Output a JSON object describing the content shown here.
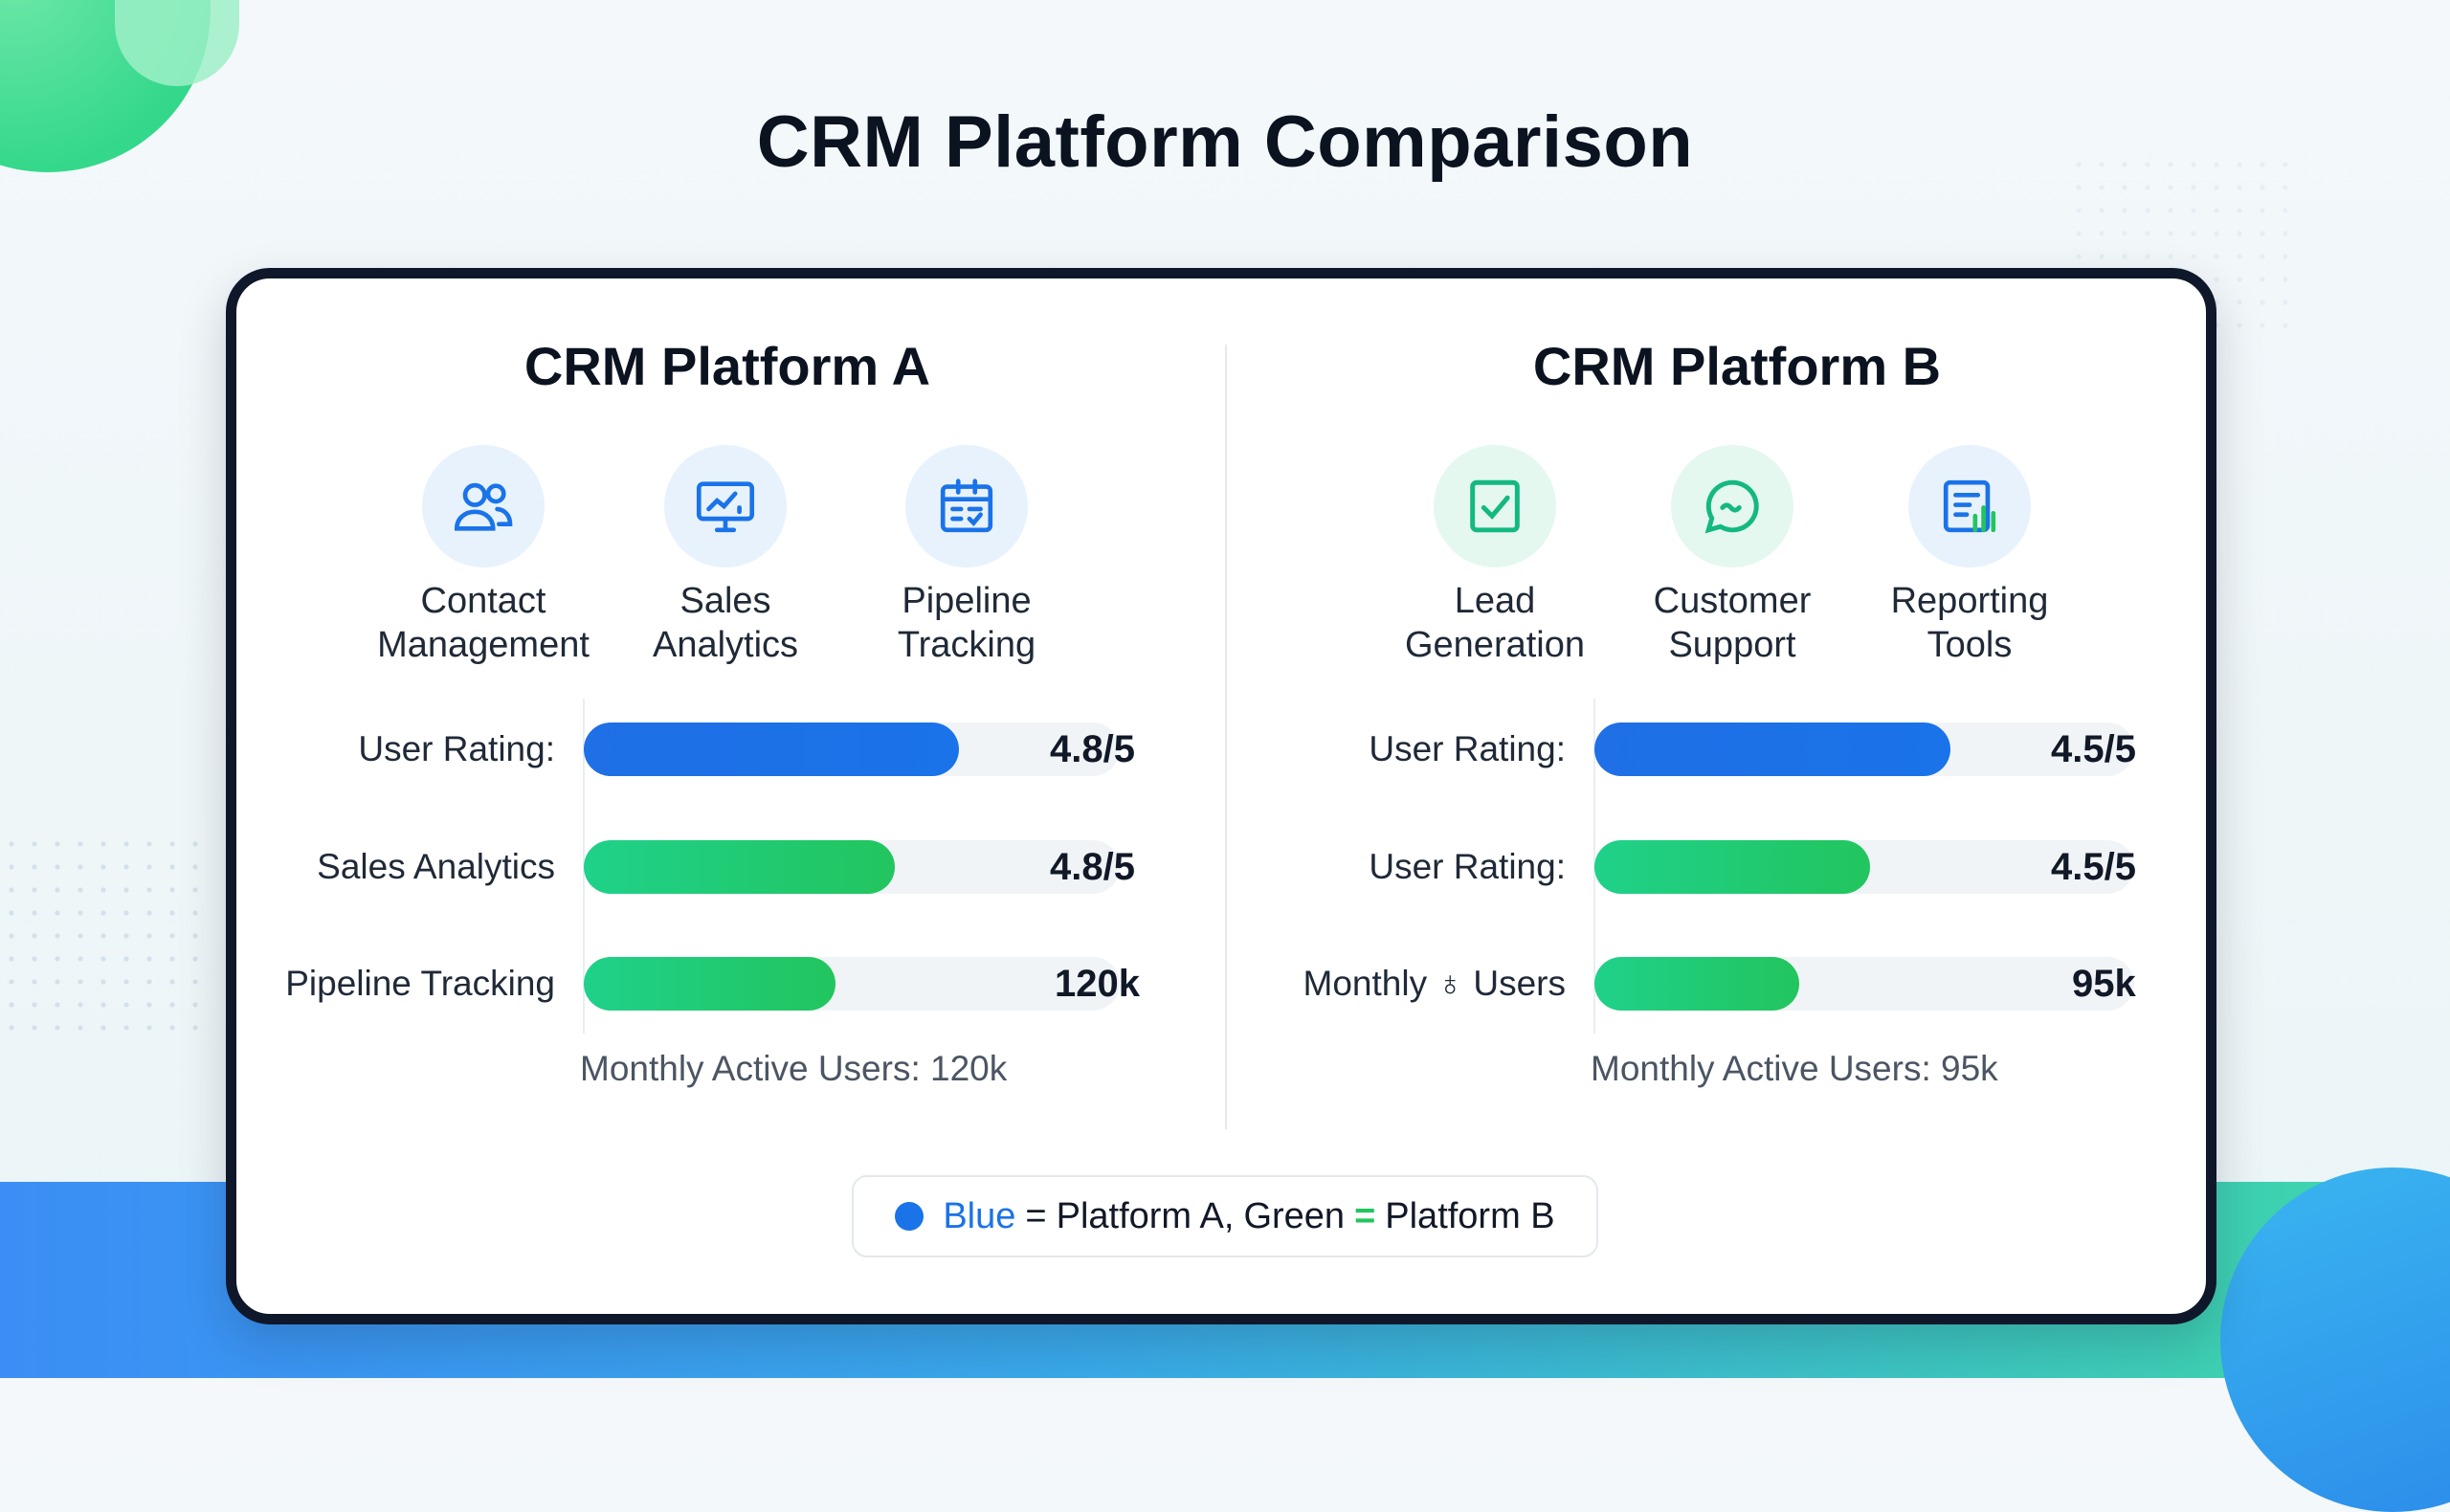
{
  "page_title": "CRM Platform Comparison",
  "colors": {
    "blue": "#1a73e8",
    "green": "#22c55e",
    "text": "#111827"
  },
  "legend": {
    "blue_word": "Blue",
    "eq1": "=",
    "platform_a": "Platform A,",
    "green_word": "Green",
    "eq2": "=",
    "platform_b": "Platform B"
  },
  "chart_data": [
    {
      "type": "bar",
      "title": "CRM Platform A",
      "features": [
        {
          "label": "Contact Management",
          "icon": "users-icon"
        },
        {
          "label": "Sales Analytics",
          "icon": "monitor-chart-icon"
        },
        {
          "label": "Pipeline Tracking",
          "icon": "clipboard-calendar-icon"
        }
      ],
      "categories": [
        "User Rating:",
        "Sales Analytics",
        "Pipeline Tracking"
      ],
      "values": [
        "4.8/5",
        "4.8/5",
        "120k"
      ],
      "fill_fraction": [
        0.7,
        0.58,
        0.47
      ],
      "bar_colors": [
        "#1a73e8",
        "#22c55e",
        "#22c55e"
      ],
      "footnote": "Monthly Active Users: 120k"
    },
    {
      "type": "bar",
      "title": "CRM Platform B",
      "features": [
        {
          "label": "Lead Generation",
          "icon": "checkbox-icon"
        },
        {
          "label": "Customer Support",
          "icon": "chat-bubble-icon"
        },
        {
          "label": "Reporting Tools",
          "icon": "report-document-icon"
        }
      ],
      "categories": [
        "User Rating:",
        "User Rating:",
        "Monthly ♁ Users"
      ],
      "values": [
        "4.5/5",
        "4.5/5",
        "95k"
      ],
      "fill_fraction": [
        0.66,
        0.51,
        0.38
      ],
      "bar_colors": [
        "#1a73e8",
        "#22c55e",
        "#22c55e"
      ],
      "footnote": "Monthly Active Users: 95k"
    }
  ]
}
